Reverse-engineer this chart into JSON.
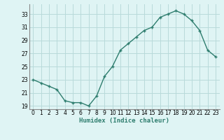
{
  "x": [
    0,
    1,
    2,
    3,
    4,
    5,
    6,
    7,
    8,
    9,
    10,
    11,
    12,
    13,
    14,
    15,
    16,
    17,
    18,
    19,
    20,
    21,
    22,
    23
  ],
  "y": [
    23.0,
    22.5,
    22.0,
    21.5,
    19.8,
    19.5,
    19.5,
    19.0,
    20.5,
    23.5,
    25.0,
    27.5,
    28.5,
    29.5,
    30.5,
    31.0,
    32.5,
    33.0,
    33.5,
    33.0,
    32.0,
    30.5,
    27.5,
    26.5
  ],
  "line_color": "#2e7d6e",
  "marker": "+",
  "bg_color": "#dff4f4",
  "grid_color": "#b8dada",
  "xlabel": "Humidex (Indice chaleur)",
  "xlim": [
    -0.5,
    23.5
  ],
  "ylim": [
    18.5,
    34.5
  ],
  "yticks": [
    19,
    21,
    23,
    25,
    27,
    29,
    31,
    33
  ],
  "xticks": [
    0,
    1,
    2,
    3,
    4,
    5,
    6,
    7,
    8,
    9,
    10,
    11,
    12,
    13,
    14,
    15,
    16,
    17,
    18,
    19,
    20,
    21,
    22,
    23
  ]
}
